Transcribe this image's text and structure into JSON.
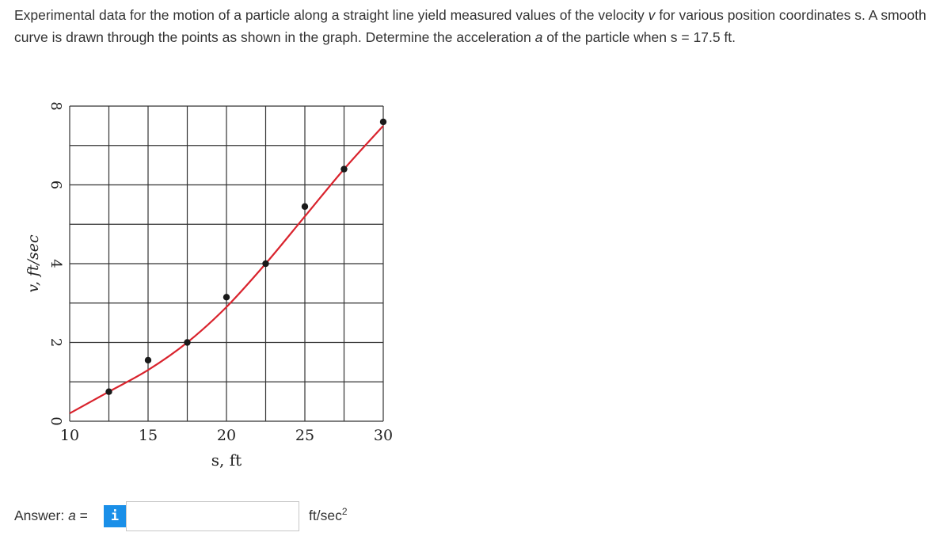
{
  "question": {
    "part1": "Experimental data for the motion of a particle along a straight line yield measured values of the velocity ",
    "v_symbol": "v",
    "part2": " for various position coordinates ",
    "s_symbol": "s",
    "part3": ". A smooth curve is drawn through the points as shown in the graph. Determine the acceleration ",
    "a_symbol": "a",
    "part4": " of the particle when s = 17.5 ft."
  },
  "chart_data": {
    "type": "scatter",
    "xlabel": "s, ft",
    "ylabel": "v, ft/sec",
    "xlim": [
      10,
      30
    ],
    "ylim": [
      0,
      8
    ],
    "x_ticks": [
      10,
      15,
      20,
      25,
      30
    ],
    "x_tick_labels": [
      "10",
      "15",
      "20",
      "25",
      "30"
    ],
    "y_ticks": [
      0,
      2,
      4,
      6,
      8
    ],
    "y_tick_labels": [
      "0",
      "2",
      "4",
      "6",
      "8"
    ],
    "grid": true,
    "grid_step_x": 2.5,
    "grid_step_y": 1,
    "series": [
      {
        "kind": "points",
        "x": [
          12.5,
          15,
          17.5,
          20,
          22.5,
          25,
          27.5,
          30
        ],
        "y": [
          0.75,
          1.55,
          2.0,
          3.15,
          4.0,
          5.45,
          6.4,
          7.6
        ],
        "color": "#1a1a1a"
      },
      {
        "kind": "smooth-curve",
        "x": [
          10,
          12.5,
          15,
          17.5,
          20,
          22.5,
          25,
          27.5,
          30
        ],
        "y": [
          0.2,
          0.75,
          1.3,
          2.0,
          2.9,
          4.0,
          5.2,
          6.4,
          7.5
        ],
        "color": "#d9232d"
      }
    ]
  },
  "answer": {
    "label_prefix": "Answer: ",
    "label_var": "a",
    "label_suffix": " =",
    "info_glyph": "i",
    "input_value": "",
    "unit_base": "ft/sec",
    "unit_exp": "2"
  },
  "colors": {
    "accent": "#1a8fe8",
    "curve": "#d9232d",
    "points": "#1a1a1a",
    "grid": "#333333"
  }
}
